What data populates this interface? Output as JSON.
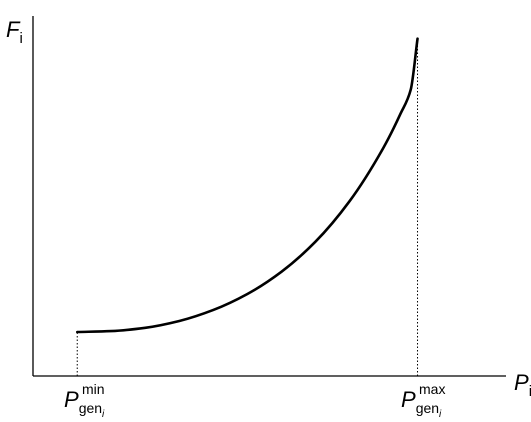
{
  "chart_data": {
    "type": "line",
    "title": "",
    "xlabel": "P",
    "xlabel_subscript": "i",
    "ylabel": "F",
    "ylabel_subscript": "i",
    "grid": false,
    "legend": "none",
    "ticks": [
      {
        "base": "P",
        "sub": "gen",
        "sub_sub": "i",
        "sup": "min",
        "x": 0
      },
      {
        "base": "P",
        "sub": "gen",
        "sub_sub": "i",
        "sup": "max",
        "x": 1
      }
    ],
    "xlim": [
      -0.13,
      1.26
    ],
    "ylim": [
      -0.15,
      1.05
    ],
    "series": [
      {
        "x": [
          0,
          0.1,
          0.2,
          0.3,
          0.4,
          0.5,
          0.6,
          0.7,
          0.8,
          0.9,
          0.95,
          0.98,
          1.0
        ],
        "y": [
          0,
          0.0031,
          0.0144,
          0.0376,
          0.0752,
          0.1296,
          0.2053,
          0.3078,
          0.4455,
          0.6287,
          0.7442,
          0.8261,
          1.0
        ]
      }
    ],
    "guides": {
      "style": "dotted",
      "at_x": [
        0,
        1
      ]
    },
    "colors": {
      "curve": "#000000",
      "axes": "#000000"
    }
  }
}
